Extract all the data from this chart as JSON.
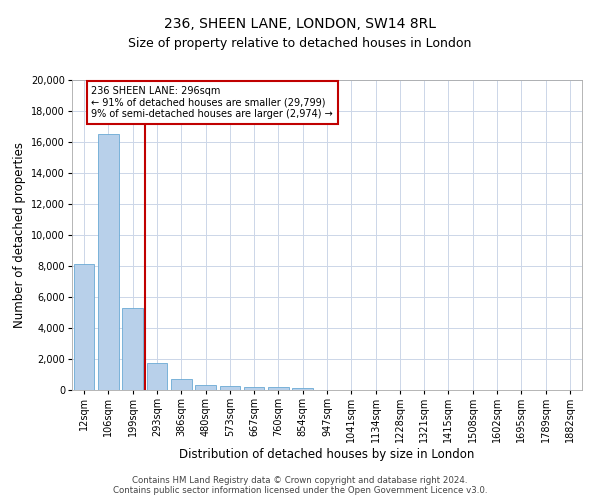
{
  "title": "236, SHEEN LANE, LONDON, SW14 8RL",
  "subtitle": "Size of property relative to detached houses in London",
  "xlabel": "Distribution of detached houses by size in London",
  "ylabel": "Number of detached properties",
  "categories": [
    "12sqm",
    "106sqm",
    "199sqm",
    "293sqm",
    "386sqm",
    "480sqm",
    "573sqm",
    "667sqm",
    "760sqm",
    "854sqm",
    "947sqm",
    "1041sqm",
    "1134sqm",
    "1228sqm",
    "1321sqm",
    "1415sqm",
    "1508sqm",
    "1602sqm",
    "1695sqm",
    "1789sqm",
    "1882sqm"
  ],
  "values": [
    8100,
    16500,
    5300,
    1750,
    700,
    350,
    250,
    175,
    175,
    130,
    0,
    0,
    0,
    0,
    0,
    0,
    0,
    0,
    0,
    0,
    0
  ],
  "bar_color": "#b8d0ea",
  "bar_edge_color": "#6aaad4",
  "vline_label": "236 SHEEN LANE: 296sqm",
  "annotation_line1": "← 91% of detached houses are smaller (29,799)",
  "annotation_line2": "9% of semi-detached houses are larger (2,974) →",
  "vline_color": "#c00000",
  "annotation_box_color": "#c00000",
  "ylim": [
    0,
    20000
  ],
  "yticks": [
    0,
    2000,
    4000,
    6000,
    8000,
    10000,
    12000,
    14000,
    16000,
    18000,
    20000
  ],
  "background_color": "#ffffff",
  "grid_color": "#ccd6e8",
  "footer_line1": "Contains HM Land Registry data © Crown copyright and database right 2024.",
  "footer_line2": "Contains public sector information licensed under the Open Government Licence v3.0.",
  "title_fontsize": 10,
  "subtitle_fontsize": 9,
  "axis_label_fontsize": 8.5,
  "tick_fontsize": 7
}
